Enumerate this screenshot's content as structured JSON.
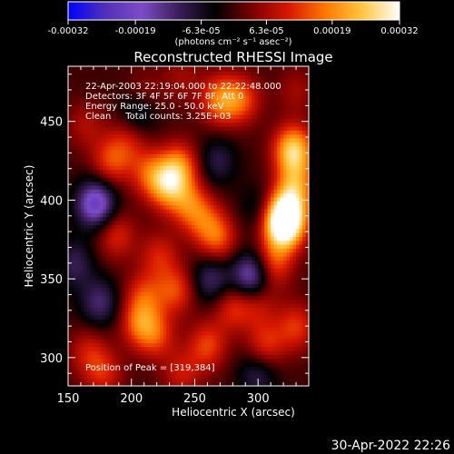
{
  "chart_data": {
    "type": "heatmap",
    "title": "Reconstructed RHESSI Image",
    "xlabel": "Heliocentric X (arcsec)",
    "ylabel": "Heliocentric Y (arcsec)",
    "xlim": [
      150,
      340
    ],
    "ylim": [
      282,
      485
    ],
    "x_ticks": [
      "150",
      "200",
      "250",
      "300"
    ],
    "y_ticks": [
      "300",
      "350",
      "400",
      "450"
    ],
    "x_tick_values": [
      150,
      200,
      250,
      300
    ],
    "y_tick_values": [
      300,
      350,
      400,
      450
    ],
    "colorbar": {
      "ticks": [
        "-0.00032",
        "-0.00019",
        "-6.3e-05",
        "6.3e-05",
        "0.00019",
        "0.00032"
      ],
      "tick_values": [
        -0.00032,
        -0.00019,
        -6.3e-05,
        6.3e-05,
        0.00019,
        0.00032
      ],
      "range": [
        -0.00032,
        0.00032
      ],
      "units": "(photons cm⁻² s⁻¹ asec⁻²)",
      "colormap": [
        "#0000ff",
        "#5030b8",
        "#7d4bc8",
        "#3a1e58",
        "#000000",
        "#7a0000",
        "#d81800",
        "#ff7a00",
        "#ffc840",
        "#ffffff"
      ]
    },
    "annotations": [
      "22-Apr-2003 22:19:04.000 to 22:22:48.000",
      "Detectors: 3F 4F 5F 6F 7F 8F, Att 0",
      "Energy Range: 25.0 - 50.0 keV",
      "Clean     Total counts: 3.25E+03"
    ],
    "peak_label": "Position of Peak = [319,384]",
    "peak": [
      319,
      384
    ],
    "blobs": [
      {
        "x": 320,
        "y": 384,
        "v": 0.00032
      },
      {
        "x": 323,
        "y": 393,
        "v": 0.00022
      },
      {
        "x": 328,
        "y": 432,
        "v": 0.00026
      },
      {
        "x": 330,
        "y": 410,
        "v": 0.00016
      },
      {
        "x": 312,
        "y": 360,
        "v": 0.00014
      },
      {
        "x": 270,
        "y": 464,
        "v": 0.00017
      },
      {
        "x": 287,
        "y": 464,
        "v": 0.00013
      },
      {
        "x": 228,
        "y": 410,
        "v": 0.0002
      },
      {
        "x": 238,
        "y": 422,
        "v": 0.00016
      },
      {
        "x": 245,
        "y": 398,
        "v": 0.00013
      },
      {
        "x": 213,
        "y": 418,
        "v": 0.00011
      },
      {
        "x": 184,
        "y": 425,
        "v": 0.00013
      },
      {
        "x": 198,
        "y": 439,
        "v": 9e-05
      },
      {
        "x": 268,
        "y": 376,
        "v": 0.00014
      },
      {
        "x": 257,
        "y": 388,
        "v": 0.0001
      },
      {
        "x": 222,
        "y": 365,
        "v": 0.0001
      },
      {
        "x": 188,
        "y": 378,
        "v": 0.00011
      },
      {
        "x": 210,
        "y": 340,
        "v": 0.00011
      },
      {
        "x": 235,
        "y": 343,
        "v": 0.00013
      },
      {
        "x": 280,
        "y": 332,
        "v": 0.00011
      },
      {
        "x": 300,
        "y": 335,
        "v": 9e-05
      },
      {
        "x": 207,
        "y": 322,
        "v": 0.00015
      },
      {
        "x": 220,
        "y": 314,
        "v": 0.00011
      },
      {
        "x": 260,
        "y": 308,
        "v": 0.00013
      },
      {
        "x": 306,
        "y": 308,
        "v": 0.00012
      },
      {
        "x": 330,
        "y": 320,
        "v": 0.00012
      },
      {
        "x": 166,
        "y": 304,
        "v": 9e-05
      },
      {
        "x": 178,
        "y": 290,
        "v": 0.0001
      },
      {
        "x": 240,
        "y": 290,
        "v": 9e-05
      },
      {
        "x": 164,
        "y": 448,
        "v": 7e-05
      },
      {
        "x": 210,
        "y": 468,
        "v": 6e-05
      },
      {
        "x": 240,
        "y": 478,
        "v": 6e-05
      },
      {
        "x": 330,
        "y": 470,
        "v": 6e-05
      },
      {
        "x": 172,
        "y": 398,
        "v": -0.00022
      },
      {
        "x": 295,
        "y": 352,
        "v": -0.0002
      },
      {
        "x": 263,
        "y": 350,
        "v": -0.00012
      },
      {
        "x": 205,
        "y": 455,
        "v": -0.0001
      },
      {
        "x": 175,
        "y": 335,
        "v": -0.00012
      },
      {
        "x": 300,
        "y": 290,
        "v": -0.0001
      },
      {
        "x": 268,
        "y": 425,
        "v": -9e-05
      },
      {
        "x": 155,
        "y": 360,
        "v": -0.0001
      },
      {
        "x": 300,
        "y": 395,
        "v": -6e-05
      }
    ]
  },
  "footer": {
    "timestamp": "30-Apr-2022 22:26"
  }
}
